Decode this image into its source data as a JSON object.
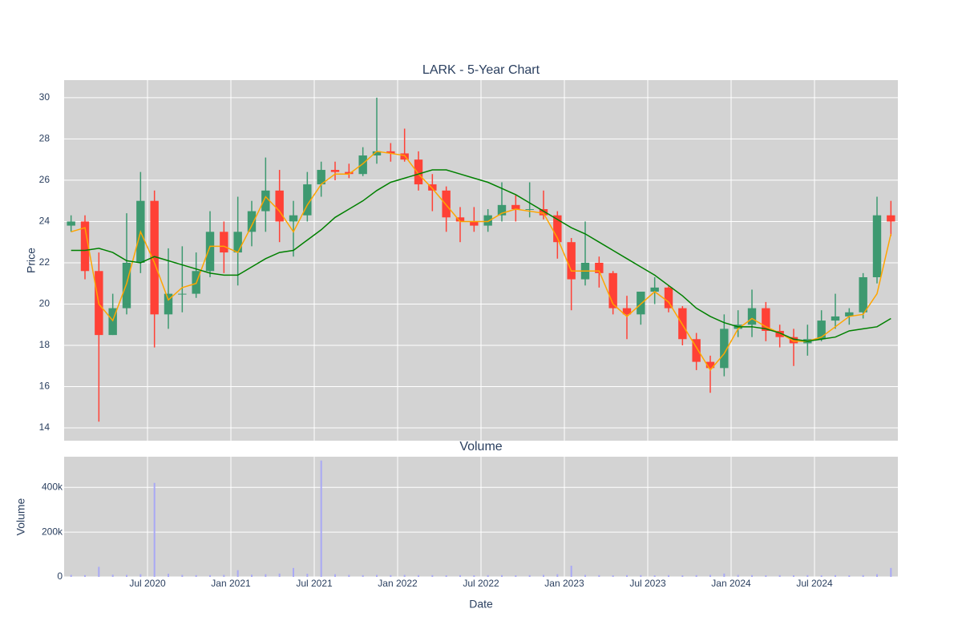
{
  "chart_data": [
    {
      "type": "candlestick",
      "title": "LARK - 5-Year Chart",
      "ylabel": "Price",
      "x": [
        "2020-01",
        "2020-02",
        "2020-03",
        "2020-04",
        "2020-05",
        "2020-06",
        "2020-07",
        "2020-08",
        "2020-09",
        "2020-10",
        "2020-11",
        "2020-12",
        "2021-01",
        "2021-02",
        "2021-03",
        "2021-04",
        "2021-05",
        "2021-06",
        "2021-07",
        "2021-08",
        "2021-09",
        "2021-10",
        "2021-11",
        "2021-12",
        "2022-01",
        "2022-02",
        "2022-03",
        "2022-04",
        "2022-05",
        "2022-06",
        "2022-07",
        "2022-08",
        "2022-09",
        "2022-10",
        "2022-11",
        "2022-12",
        "2023-01",
        "2023-02",
        "2023-03",
        "2023-04",
        "2023-05",
        "2023-06",
        "2023-07",
        "2023-08",
        "2023-09",
        "2023-10",
        "2023-11",
        "2023-12",
        "2024-01",
        "2024-02",
        "2024-03",
        "2024-04",
        "2024-05",
        "2024-06",
        "2024-07",
        "2024-08",
        "2024-09",
        "2024-10",
        "2024-11",
        "2024-12"
      ],
      "open": [
        23.8,
        24.0,
        21.6,
        18.5,
        19.8,
        22.0,
        25.0,
        19.5,
        20.5,
        20.5,
        21.6,
        23.5,
        22.5,
        23.5,
        24.5,
        25.5,
        24.0,
        24.3,
        25.8,
        26.5,
        26.4,
        26.3,
        27.2,
        27.4,
        27.3,
        27.0,
        25.8,
        25.5,
        24.2,
        24.0,
        23.8,
        24.3,
        24.8,
        24.6,
        24.6,
        24.3,
        23.0,
        21.2,
        22.0,
        21.5,
        19.8,
        19.5,
        20.6,
        20.8,
        19.8,
        18.3,
        17.2,
        16.9,
        18.8,
        19.0,
        19.8,
        18.7,
        18.4,
        18.1,
        18.3,
        19.2,
        19.4,
        19.6,
        21.3,
        24.3
      ],
      "high": [
        24.3,
        24.3,
        22.5,
        20.5,
        24.4,
        26.4,
        25.5,
        22.7,
        22.8,
        22.5,
        24.5,
        24.0,
        25.2,
        25.0,
        27.1,
        26.5,
        25.0,
        26.4,
        26.9,
        26.9,
        26.8,
        27.6,
        30.0,
        27.8,
        28.5,
        27.4,
        26.3,
        25.7,
        24.7,
        24.7,
        24.6,
        25.9,
        25.3,
        25.9,
        25.5,
        24.5,
        23.2,
        24.0,
        22.3,
        21.6,
        20.4,
        20.5,
        21.3,
        20.9,
        19.9,
        18.6,
        17.5,
        19.5,
        19.7,
        20.7,
        20.1,
        19.0,
        18.8,
        19.0,
        19.7,
        20.5,
        19.8,
        21.5,
        25.2,
        25.0
      ],
      "low": [
        23.5,
        21.2,
        14.3,
        18.5,
        19.5,
        21.5,
        17.9,
        18.8,
        19.6,
        20.3,
        21.3,
        21.5,
        20.9,
        22.8,
        23.5,
        23.0,
        22.3,
        24.0,
        25.2,
        26.0,
        26.1,
        26.2,
        26.8,
        26.9,
        26.9,
        25.5,
        24.5,
        23.5,
        23.0,
        23.5,
        23.5,
        24.0,
        24.0,
        24.2,
        24.1,
        22.2,
        19.7,
        20.9,
        20.8,
        19.5,
        18.3,
        19.0,
        20.0,
        19.6,
        18.0,
        16.8,
        15.7,
        16.5,
        18.4,
        18.4,
        18.2,
        17.9,
        17.0,
        17.5,
        18.2,
        18.8,
        19.0,
        19.3,
        21.0,
        23.3
      ],
      "close": [
        24.0,
        21.6,
        18.5,
        19.8,
        22.0,
        25.0,
        19.5,
        20.5,
        20.5,
        21.6,
        23.5,
        22.5,
        23.5,
        24.5,
        25.5,
        24.0,
        24.3,
        25.8,
        26.5,
        26.4,
        26.3,
        27.2,
        27.4,
        27.3,
        27.0,
        25.8,
        25.5,
        24.2,
        24.0,
        23.8,
        24.3,
        24.8,
        24.6,
        24.6,
        24.3,
        23.0,
        21.2,
        22.0,
        21.5,
        19.8,
        19.5,
        20.6,
        20.8,
        19.8,
        18.3,
        17.2,
        16.9,
        18.8,
        19.0,
        19.8,
        18.7,
        18.4,
        18.1,
        18.3,
        19.2,
        19.4,
        19.6,
        21.3,
        24.3,
        24.0
      ],
      "increasing_color": "#3d9970",
      "decreasing_color": "#ff4136",
      "lines": [
        {
          "color": "orange",
          "values": [
            23.5,
            23.7,
            20.0,
            19.2,
            21.0,
            23.5,
            22.0,
            20.2,
            20.8,
            21.0,
            22.8,
            22.8,
            22.5,
            23.8,
            25.2,
            24.5,
            23.5,
            24.8,
            25.8,
            26.3,
            26.3,
            26.8,
            27.4,
            27.3,
            27.2,
            26.3,
            25.6,
            24.8,
            24.0,
            24.0,
            24.0,
            24.4,
            24.6,
            24.5,
            24.4,
            23.2,
            21.6,
            21.6,
            21.6,
            20.0,
            19.4,
            20.0,
            20.6,
            20.1,
            19.0,
            17.9,
            16.8,
            17.6,
            18.8,
            19.3,
            18.9,
            18.6,
            18.2,
            18.2,
            18.4,
            18.9,
            19.4,
            19.5,
            20.5,
            23.4
          ]
        },
        {
          "color": "green",
          "values": [
            22.6,
            22.6,
            22.7,
            22.5,
            22.1,
            22.0,
            22.3,
            22.1,
            21.9,
            21.7,
            21.5,
            21.4,
            21.4,
            21.8,
            22.2,
            22.5,
            22.6,
            23.1,
            23.6,
            24.2,
            24.6,
            25.0,
            25.5,
            25.9,
            26.1,
            26.3,
            26.5,
            26.5,
            26.3,
            26.1,
            25.9,
            25.6,
            25.3,
            24.9,
            24.5,
            24.1,
            23.7,
            23.4,
            23.0,
            22.6,
            22.2,
            21.8,
            21.4,
            20.9,
            20.4,
            19.8,
            19.4,
            19.1,
            18.9,
            18.9,
            18.8,
            18.6,
            18.3,
            18.2,
            18.3,
            18.4,
            18.7,
            18.8,
            18.9,
            19.3
          ]
        }
      ],
      "xlim": [
        "2020-01",
        "2025-01"
      ],
      "ylim": [
        13.38,
        30.85
      ],
      "yticks": [
        14,
        16,
        18,
        20,
        22,
        24,
        26,
        28,
        30
      ],
      "grid": true
    },
    {
      "type": "bar",
      "title": "Volume",
      "ylabel": "Volume",
      "xlabel": "Date",
      "x": [
        "2020-01",
        "2020-02",
        "2020-03",
        "2020-04",
        "2020-05",
        "2020-06",
        "2020-07",
        "2020-08",
        "2020-09",
        "2020-10",
        "2020-11",
        "2020-12",
        "2021-01",
        "2021-02",
        "2021-03",
        "2021-04",
        "2021-05",
        "2021-06",
        "2021-07",
        "2021-08",
        "2021-09",
        "2021-10",
        "2021-11",
        "2021-12",
        "2022-01",
        "2022-02",
        "2022-03",
        "2022-04",
        "2022-05",
        "2022-06",
        "2022-07",
        "2022-08",
        "2022-09",
        "2022-10",
        "2022-11",
        "2022-12",
        "2023-01",
        "2023-02",
        "2023-03",
        "2023-04",
        "2023-05",
        "2023-06",
        "2023-07",
        "2023-08",
        "2023-09",
        "2023-10",
        "2023-11",
        "2023-12",
        "2024-01",
        "2024-02",
        "2024-03",
        "2024-04",
        "2024-05",
        "2024-06",
        "2024-07",
        "2024-08",
        "2024-09",
        "2024-10",
        "2024-11",
        "2024-12"
      ],
      "values": [
        9000,
        8000,
        45000,
        10000,
        9000,
        12000,
        420000,
        14000,
        9000,
        8000,
        8000,
        9000,
        30000,
        10000,
        12000,
        15000,
        40000,
        14000,
        520000,
        12000,
        9000,
        8000,
        9000,
        8000,
        9000,
        8000,
        8000,
        7000,
        8000,
        7000,
        8000,
        8000,
        7000,
        8000,
        9000,
        12000,
        50000,
        9000,
        8000,
        7000,
        8000,
        8000,
        7000,
        8000,
        7000,
        8000,
        9000,
        15000,
        9000,
        8000,
        7000,
        8000,
        7000,
        8000,
        7000,
        8000,
        7000,
        8000,
        12000,
        40000
      ],
      "color": "#a9a9f5",
      "xlim": [
        "2020-01",
        "2025-01"
      ],
      "xticks": [
        {
          "value": "2020-07",
          "label": "Jul 2020"
        },
        {
          "value": "2021-01",
          "label": "Jan 2021"
        },
        {
          "value": "2021-07",
          "label": "Jul 2021"
        },
        {
          "value": "2022-01",
          "label": "Jan 2022"
        },
        {
          "value": "2022-07",
          "label": "Jul 2022"
        },
        {
          "value": "2023-01",
          "label": "Jan 2023"
        },
        {
          "value": "2023-07",
          "label": "Jul 2023"
        },
        {
          "value": "2024-01",
          "label": "Jan 2024"
        },
        {
          "value": "2024-07",
          "label": "Jul 2024"
        }
      ],
      "ylim": [
        0,
        537000
      ],
      "yticks": [
        0,
        {
          "value": 200000,
          "label": "200k"
        },
        {
          "value": 400000,
          "label": "400k"
        }
      ],
      "grid": true
    }
  ]
}
